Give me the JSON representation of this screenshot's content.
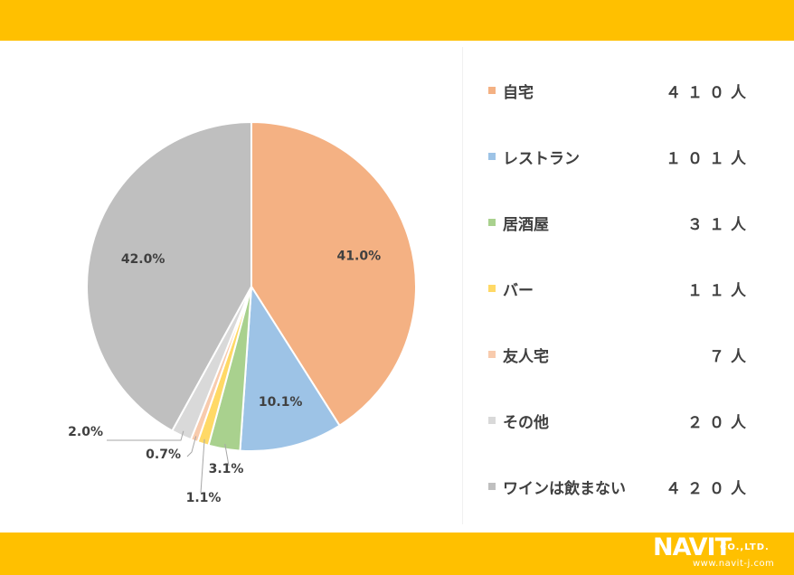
{
  "theme": {
    "accent": "#FFC000",
    "text": "#404040"
  },
  "chart_data": {
    "type": "pie",
    "title": "",
    "slices": [
      {
        "label": "自宅",
        "count": "４１０人",
        "value": 41.0,
        "display": "41.0%",
        "color": "#F4B183"
      },
      {
        "label": "レストラン",
        "count": "１０１人",
        "value": 10.1,
        "display": "10.1%",
        "color": "#9DC3E6"
      },
      {
        "label": "居酒屋",
        "count": "３１人",
        "value": 3.1,
        "display": "3.1%",
        "color": "#A9D18E"
      },
      {
        "label": "バー",
        "count": "１１人",
        "value": 1.1,
        "display": "1.1%",
        "color": "#FFD966"
      },
      {
        "label": "友人宅",
        "count": "７人",
        "value": 0.7,
        "display": "0.7%",
        "color": "#F8CBAD"
      },
      {
        "label": "その他",
        "count": "２０人",
        "value": 2.0,
        "display": "2.0%",
        "color": "#D9D9D9"
      },
      {
        "label": "ワインは飲まない",
        "count": "４２０人",
        "value": 42.0,
        "display": "42.0%",
        "color": "#BFBFBF"
      }
    ],
    "legend_position": "right"
  },
  "logo": {
    "brand": "NAVIT",
    "suffix": "CO.,LTD.",
    "url": "www.navit-j.com"
  }
}
